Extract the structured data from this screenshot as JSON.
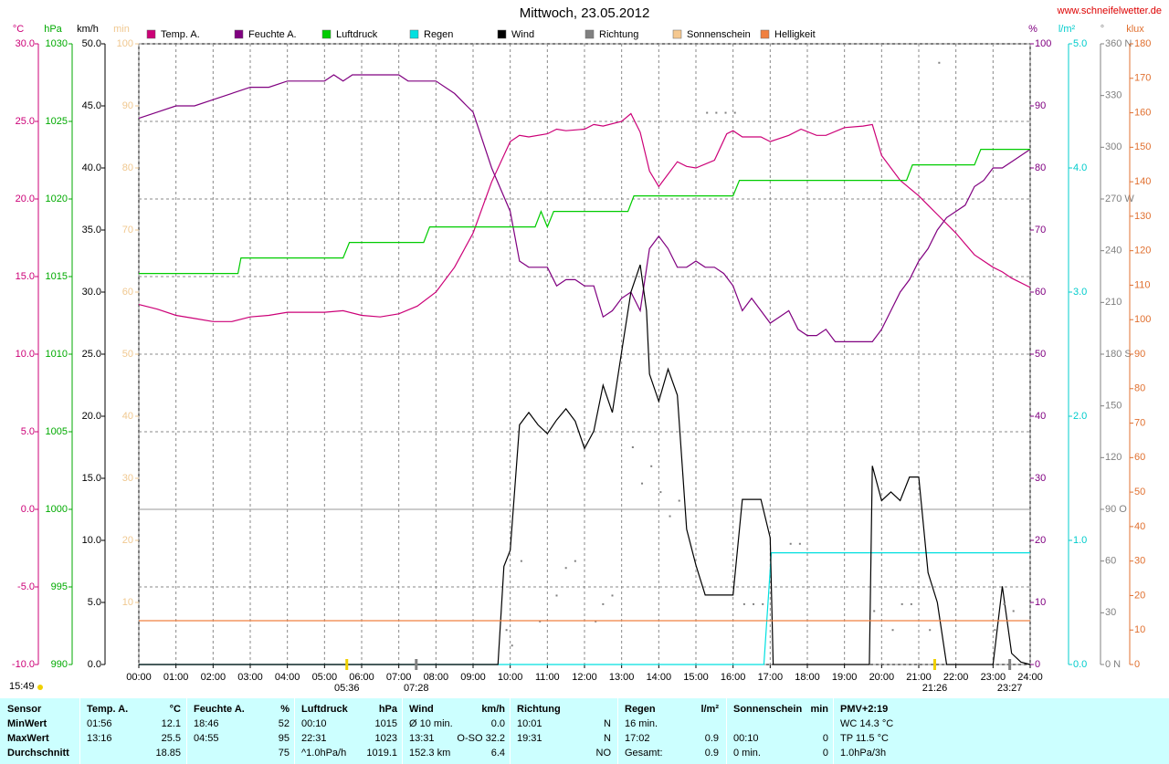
{
  "chart_data": {
    "type": "multiaxis",
    "title": "Mittwoch, 23.05.2012",
    "source": "www.schneifelwetter.de",
    "footer_note": "15:49",
    "xlim": [
      0,
      24
    ],
    "xticks": [
      {
        "value": 0,
        "label": "00:00"
      },
      {
        "value": 1,
        "label": "01:00"
      },
      {
        "value": 2,
        "label": "02:00"
      },
      {
        "value": 3,
        "label": "03:00"
      },
      {
        "value": 4,
        "label": "04:00"
      },
      {
        "value": 5,
        "label": "05:00"
      },
      {
        "value": 6,
        "label": "06:00"
      },
      {
        "value": 7,
        "label": "07:00"
      },
      {
        "value": 8,
        "label": "08:00"
      },
      {
        "value": 9,
        "label": "09:00"
      },
      {
        "value": 10,
        "label": "10:00"
      },
      {
        "value": 11,
        "label": "11:00"
      },
      {
        "value": 12,
        "label": "12:00"
      },
      {
        "value": 13,
        "label": "13:00"
      },
      {
        "value": 14,
        "label": "14:00"
      },
      {
        "value": 15,
        "label": "15:00"
      },
      {
        "value": 16,
        "label": "16:00"
      },
      {
        "value": 17,
        "label": "17:00"
      },
      {
        "value": 18,
        "label": "18:00"
      },
      {
        "value": 19,
        "label": "19:00"
      },
      {
        "value": 20,
        "label": "20:00"
      },
      {
        "value": 21,
        "label": "21:00"
      },
      {
        "value": 22,
        "label": "22:00"
      },
      {
        "value": 23,
        "label": "23:00"
      },
      {
        "value": 24,
        "label": "24:00"
      }
    ],
    "grid": true,
    "axes": [
      {
        "unit": "°C",
        "color": "#cc0077",
        "ylim": [
          -10,
          30
        ],
        "yticks": [
          {
            "value": -10,
            "label": "-10.0"
          },
          {
            "value": -5,
            "label": "-5.0"
          },
          {
            "value": 0,
            "label": "0.0"
          },
          {
            "value": 5,
            "label": "5.0"
          },
          {
            "value": 10,
            "label": "10.0"
          },
          {
            "value": 15,
            "label": "15.0"
          },
          {
            "value": 20,
            "label": "20.0"
          },
          {
            "value": 25,
            "label": "25.0"
          },
          {
            "value": 30,
            "label": "30.0"
          }
        ]
      },
      {
        "unit": "hPa",
        "color": "#00aa00",
        "ylim": [
          990,
          1030
        ],
        "yticks": [
          990,
          995,
          1000,
          1005,
          1010,
          1015,
          1020,
          1025,
          1030
        ]
      },
      {
        "unit": "km/h",
        "color": "#000000",
        "ylim": [
          0,
          50
        ],
        "yticks": [
          {
            "value": 0,
            "label": "0.0"
          },
          {
            "value": 5,
            "label": "5.0"
          },
          {
            "value": 10,
            "label": "10.0"
          },
          {
            "value": 15,
            "label": "15.0"
          },
          {
            "value": 20,
            "label": "20.0"
          },
          {
            "value": 25,
            "label": "25.0"
          },
          {
            "value": 30,
            "label": "30.0"
          },
          {
            "value": 35,
            "label": "35.0"
          },
          {
            "value": 40,
            "label": "40.0"
          },
          {
            "value": 45,
            "label": "45.0"
          },
          {
            "value": 50,
            "label": "50.0"
          }
        ]
      },
      {
        "unit": "min",
        "color": "#f0c890",
        "ylim": [
          0,
          100
        ],
        "yticks": [
          10,
          20,
          30,
          40,
          50,
          60,
          70,
          80,
          90,
          100
        ]
      },
      {
        "unit": "%",
        "color": "#800080",
        "ylim": [
          0,
          100
        ],
        "yticks": [
          0,
          10,
          20,
          30,
          40,
          50,
          60,
          70,
          80,
          90,
          100
        ]
      },
      {
        "unit": "l/m²",
        "color": "#00cccc",
        "ylim": [
          0,
          5
        ],
        "yticks": [
          {
            "value": 0,
            "label": "0.0"
          },
          {
            "value": 1,
            "label": "1.0"
          },
          {
            "value": 2,
            "label": "2.0"
          },
          {
            "value": 3,
            "label": "3.0"
          },
          {
            "value": 4,
            "label": "4.0"
          },
          {
            "value": 5,
            "label": "5.0"
          }
        ]
      },
      {
        "unit": "°",
        "color": "#808080",
        "ylim": [
          0,
          360
        ],
        "yticks": [
          {
            "value": 0,
            "label": "0 N"
          },
          30,
          60,
          {
            "value": 90,
            "label": "90 O"
          },
          120,
          150,
          {
            "value": 180,
            "label": "180 S"
          },
          210,
          240,
          {
            "value": 270,
            "label": "270 W"
          },
          300,
          330,
          {
            "value": 360,
            "label": "360 N"
          }
        ]
      },
      {
        "unit": "klux",
        "color": "#e07030",
        "ylim": [
          0,
          180
        ],
        "yticks": [
          0,
          10,
          20,
          30,
          40,
          50,
          60,
          70,
          80,
          90,
          100,
          110,
          120,
          130,
          140,
          150,
          160,
          170,
          180
        ]
      }
    ],
    "series": [
      {
        "name": "Temp. A.",
        "color": "#cc0077",
        "axis": "°C",
        "type": "line",
        "x": [
          0,
          0.5,
          1,
          1.5,
          2,
          2.5,
          3,
          3.5,
          4,
          5,
          5.5,
          6,
          6.5,
          7,
          7.5,
          8,
          8.5,
          9,
          9.5,
          10,
          10.25,
          10.5,
          11,
          11.25,
          11.5,
          12,
          12.25,
          12.5,
          13,
          13.25,
          13.5,
          13.75,
          14,
          14.5,
          14.75,
          15,
          15.5,
          15.83,
          16,
          16.25,
          16.75,
          17,
          17.5,
          17.83,
          18.25,
          18.5,
          19,
          19.5,
          19.75,
          20,
          20.5,
          21,
          21.5,
          22,
          22.5,
          23,
          23.25,
          23.5,
          24
        ],
        "values": [
          13.2,
          12.9,
          12.5,
          12.3,
          12.1,
          12.1,
          12.4,
          12.5,
          12.7,
          12.7,
          12.8,
          12.5,
          12.4,
          12.6,
          13.1,
          14.0,
          15.6,
          17.8,
          21.1,
          23.7,
          24.1,
          24.0,
          24.2,
          24.5,
          24.4,
          24.5,
          24.8,
          24.7,
          25.0,
          25.5,
          24.3,
          21.8,
          20.8,
          22.4,
          22.1,
          22.0,
          22.5,
          24.2,
          24.4,
          24.0,
          24.0,
          23.7,
          24.1,
          24.5,
          24.1,
          24.1,
          24.6,
          24.7,
          24.8,
          22.8,
          21.2,
          20.2,
          19.0,
          17.8,
          16.4,
          15.6,
          15.3,
          14.9,
          14.3
        ]
      },
      {
        "name": "Feuchte A.",
        "color": "#800080",
        "axis": "%",
        "type": "line",
        "x": [
          0,
          0.5,
          1,
          1.5,
          2,
          2.5,
          3,
          3.5,
          4,
          5,
          5.25,
          5.5,
          5.75,
          7,
          7.25,
          8,
          8.5,
          8.83,
          9,
          9.5,
          10,
          10.25,
          10.5,
          11,
          11.25,
          11.5,
          11.75,
          12,
          12.25,
          12.5,
          12.75,
          13,
          13.25,
          13.5,
          13.75,
          14,
          14.25,
          14.5,
          14.75,
          15,
          15.25,
          15.5,
          15.75,
          16,
          16.25,
          16.5,
          16.75,
          17,
          17.25,
          17.5,
          17.75,
          18,
          18.25,
          18.5,
          18.75,
          19.75,
          20,
          20.25,
          20.5,
          20.75,
          21,
          21.25,
          21.5,
          21.75,
          22,
          22.25,
          22.5,
          22.75,
          23,
          23.25,
          23.5,
          24
        ],
        "values": [
          88,
          89,
          90,
          90,
          91,
          92,
          93,
          93,
          94,
          94,
          95,
          94,
          95,
          95,
          94,
          94,
          92,
          90,
          89,
          80,
          73,
          65,
          64,
          64,
          61,
          62,
          62,
          61,
          61,
          56,
          57,
          59,
          60,
          57,
          67,
          69,
          67,
          64,
          64,
          65,
          64,
          64,
          63,
          61,
          57,
          59,
          57,
          55,
          56,
          57,
          54,
          53,
          53,
          54,
          52,
          52,
          54,
          57,
          60,
          62,
          65,
          67,
          70,
          72,
          73,
          74,
          77,
          78,
          80,
          80,
          81,
          83
        ]
      },
      {
        "name": "Luftdruck",
        "color": "#00cc00",
        "axis": "hPa",
        "type": "line",
        "x": [
          0,
          2.67,
          2.75,
          5.5,
          5.67,
          7.67,
          7.83,
          10.67,
          10.83,
          11,
          11.17,
          13.17,
          13.33,
          16,
          16.17,
          20.67,
          20.83,
          22.5,
          22.67,
          24
        ],
        "values": [
          1015.2,
          1015.2,
          1016.2,
          1016.2,
          1017.2,
          1017.2,
          1018.2,
          1018.2,
          1019.2,
          1018.2,
          1019.2,
          1019.2,
          1020.2,
          1020.2,
          1021.2,
          1021.2,
          1022.2,
          1022.2,
          1023.2,
          1023.2
        ]
      },
      {
        "name": "Regen",
        "color": "#00e0e0",
        "axis": "l/m²",
        "type": "line",
        "x": [
          0,
          16.83,
          17.03,
          24
        ],
        "values": [
          0,
          0,
          0.9,
          0.9
        ]
      },
      {
        "name": "Wind",
        "color": "#000000",
        "axis": "km/h",
        "type": "line",
        "x": [
          0,
          9.67,
          9.83,
          10,
          10.25,
          10.5,
          10.75,
          11,
          11.25,
          11.5,
          11.75,
          12,
          12.25,
          12.5,
          12.75,
          13,
          13.25,
          13.5,
          13.67,
          13.75,
          14,
          14.25,
          14.5,
          14.75,
          15,
          15.25,
          16,
          16.25,
          16.75,
          17,
          17.08,
          19.67,
          19.75,
          20,
          20.25,
          20.5,
          20.75,
          21,
          21.25,
          21.5,
          21.75,
          23,
          23.25,
          23.5,
          23.75,
          24
        ],
        "values": [
          0,
          0,
          7.9,
          9.2,
          19.3,
          20.3,
          19.3,
          18.6,
          19.7,
          20.6,
          19.6,
          17.4,
          18.8,
          22.5,
          20.3,
          25.2,
          30,
          32.2,
          28.5,
          23.4,
          21.2,
          23.8,
          21.7,
          10.9,
          8,
          5.6,
          5.6,
          13.3,
          13.3,
          10.2,
          0,
          0,
          16,
          13.2,
          13.9,
          13.2,
          15.1,
          15.1,
          7.4,
          5,
          0,
          0,
          6.3,
          0.9,
          0.2,
          0
        ]
      },
      {
        "name": "Richtung",
        "color": "#808080",
        "axis": "°",
        "type": "scatter",
        "x": [
          9.9,
          10.05,
          10.3,
          10.8,
          11.25,
          11.5,
          11.75,
          12.3,
          12.5,
          12.75,
          13.3,
          13.55,
          13.8,
          14.05,
          14.3,
          14.55,
          15.3,
          15.55,
          15.8,
          16.05,
          16.3,
          16.55,
          16.8,
          17.55,
          17.8,
          19.8,
          20.3,
          20.55,
          20.8,
          21.3,
          21.55,
          23.05,
          23.3,
          23.55
        ],
        "values": [
          20,
          11,
          60,
          25,
          40,
          56,
          60,
          25,
          35,
          40,
          126,
          105,
          115,
          100,
          86,
          95,
          320,
          320,
          320,
          320,
          35,
          35,
          35,
          70,
          70,
          31,
          20,
          35,
          35,
          20,
          349,
          20,
          35,
          31
        ]
      },
      {
        "name": "Sonnenschein",
        "color": "#f5c890",
        "axis": "min",
        "type": "line"
      },
      {
        "name": "Helligkeit",
        "color": "#f08040",
        "axis": "klux",
        "type": "line",
        "x": [
          0,
          24
        ],
        "values": [
          12.7,
          12.7
        ]
      }
    ],
    "annotations": [
      {
        "text": "05:36",
        "x": 5.6,
        "color": "#f0d000"
      },
      {
        "text": "07:28",
        "x": 7.47,
        "color": "#808080"
      },
      {
        "text": "21:26",
        "x": 21.43,
        "color": "#f0d000"
      },
      {
        "text": "23:27",
        "x": 23.45,
        "color": "#808080"
      }
    ]
  },
  "table": {
    "header": [
      {
        "l": "Sensor"
      },
      {
        "l": "Temp. A.",
        "r": "°C"
      },
      {
        "l": "Feuchte A.",
        "r": "%"
      },
      {
        "l": "Luftdruck",
        "r": "hPa"
      },
      {
        "l": "Wind",
        "r": "km/h"
      },
      {
        "l": "Richtung"
      },
      {
        "l": "Regen",
        "r": "l/m²"
      },
      {
        "l": "Sonnenschein",
        "r": "min"
      },
      {
        "l": "PMV+2:19"
      }
    ],
    "rows": [
      [
        {
          "l": "MinWert"
        },
        {
          "l": "01:56",
          "r": "12.1"
        },
        {
          "l": "18:46",
          "r": "52"
        },
        {
          "l": "00:10",
          "r": "1015"
        },
        {
          "l": "Ø 10 min.",
          "r": "0.0"
        },
        {
          "l": "10:01",
          "r": "N"
        },
        {
          "l": "16 min."
        },
        null,
        {
          "l": "WC 14.3 °C"
        }
      ],
      [
        {
          "l": "MaxWert"
        },
        {
          "l": "13:16",
          "r": "25.5"
        },
        {
          "l": "04:55",
          "r": "95"
        },
        {
          "l": "22:31",
          "r": "1023"
        },
        {
          "l": "13:31",
          "r": "O-SO 32.2"
        },
        {
          "l": "19:31",
          "r": "N"
        },
        {
          "l": "17:02",
          "r": "0.9"
        },
        {
          "l": "00:10",
          "r": "0"
        },
        {
          "l": "TP 11.5 °C"
        }
      ],
      [
        {
          "l": "Durchschnitt"
        },
        {
          "r": "18.85"
        },
        {
          "r": "75"
        },
        {
          "l": "^1.0hPa/h",
          "r": "1019.1"
        },
        {
          "l": "152.3 km",
          "r": "6.4"
        },
        {
          "r": "NO"
        },
        {
          "l": "Gesamt:",
          "r": "0.9"
        },
        {
          "l": "0 min.",
          "r": "0"
        },
        {
          "l": "1.0hPa/3h"
        }
      ]
    ]
  }
}
